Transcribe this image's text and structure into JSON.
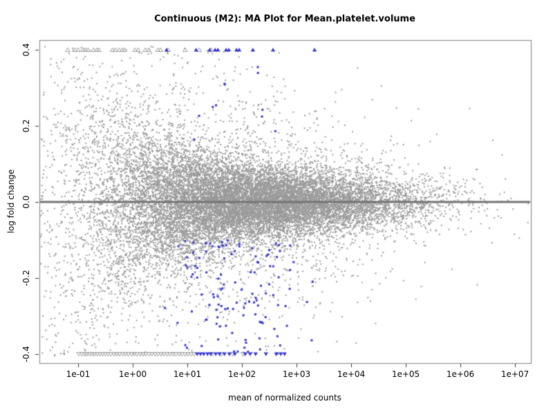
{
  "chart_data": {
    "type": "scatter",
    "title": "Continuous (M2): MA Plot for Mean.platelet.volume",
    "xlabel": "mean of normalized counts",
    "ylabel": "log fold change",
    "x_scale": "log10",
    "xlim_log10": [
      -1.71,
      7.29
    ],
    "ylim": [
      -0.425,
      0.425
    ],
    "grid": false,
    "legend": false,
    "x_ticks": [
      {
        "log10": -1,
        "label": "1e-01"
      },
      {
        "log10": 0,
        "label": "1e+00"
      },
      {
        "log10": 1,
        "label": "1e+01"
      },
      {
        "log10": 2,
        "label": "1e+02"
      },
      {
        "log10": 3,
        "label": "1e+03"
      },
      {
        "log10": 4,
        "label": "1e+04"
      },
      {
        "log10": 5,
        "label": "1e+05"
      },
      {
        "log10": 6,
        "label": "1e+06"
      },
      {
        "log10": 7,
        "label": "1e+07"
      }
    ],
    "y_ticks": [
      {
        "value": 0.4,
        "label": "0.4"
      },
      {
        "value": 0.2,
        "label": "0.2"
      },
      {
        "value": 0.0,
        "label": "0.0"
      },
      {
        "value": -0.2,
        "label": "-0.2"
      },
      {
        "value": -0.4,
        "label": "-0.4"
      }
    ],
    "colors": {
      "nonsig_point": "#9a9a9a",
      "sig_point": "#3434cf",
      "zero_line": "#737373",
      "box": "#8c8c8c",
      "tick": "#333333"
    },
    "zero_line": {
      "y": 0.0,
      "thickness": 3
    },
    "points": {
      "nonsig": {
        "description": "non-significant genes, tiny gray dots; funnel-shaped cloud narrowing toward high counts, dense solid band at log fold change 0",
        "count": 17000,
        "seed": 42,
        "log10x_mean": 1.9,
        "log10x_sd": 1.6,
        "log10x_range": [
          -1.69,
          7.28
        ],
        "sigma_anchor": -1.7,
        "sigma_base": 0.036,
        "sigma_amp": 0.33,
        "sigma_decay": 0.78,
        "tail_frac": 0.13,
        "tail_mult": 3.1,
        "y_clip": 0.41,
        "size": 2
      },
      "sig_lower": {
        "description": "significant genes (blue), mostly negative log fold change between 1e+01 and 1e+03 counts",
        "count": 120,
        "seed": 777,
        "log10x_mean": 1.95,
        "log10x_sd": 0.62,
        "log10x_range": [
          0.5,
          3.3
        ],
        "y_min_mag": 0.1,
        "y_span": 0.3,
        "y_pow": 1.25,
        "y_clip": 0.4,
        "size": 3
      },
      "sig_upper": {
        "description": "significant genes (blue) with positive log fold change",
        "count": 14,
        "seed": 991,
        "log10x_mean": 2.0,
        "log10x_sd": 0.5,
        "log10x_range": [
          1.0,
          2.8
        ],
        "y_base": 0.16,
        "y_span": 0.2,
        "size": 3
      }
    },
    "clipped": {
      "top": {
        "y": 0.4,
        "gray_log10x": [
          -1.19,
          -1.06,
          -1.0,
          -0.91,
          -0.87,
          -0.82,
          -0.72,
          -0.66,
          -0.62,
          -0.37,
          -0.32,
          -0.25,
          -0.19,
          -0.15,
          0.04,
          0.1,
          0.23,
          0.29,
          0.46,
          0.51,
          0.65,
          0.96,
          1.22,
          1.44
        ],
        "blue_log10x": [
          0.62,
          1.16,
          1.41,
          1.51,
          1.56,
          1.71,
          1.76,
          1.9,
          1.95,
          2.2,
          2.57,
          3.33
        ]
      },
      "bottom": {
        "y": -0.4,
        "gray_log10x": [
          -0.99,
          -0.93,
          -0.88,
          -0.84,
          -0.79,
          -0.74,
          -0.7,
          -0.65,
          -0.6,
          -0.55,
          -0.5,
          -0.45,
          -0.4,
          -0.34,
          -0.29,
          -0.24,
          -0.18,
          -0.13,
          -0.08,
          -0.02,
          0.03,
          0.08,
          0.14,
          0.19,
          0.24,
          0.3,
          0.35,
          0.41,
          0.46,
          0.52,
          0.57,
          0.63,
          0.68,
          0.74,
          0.79,
          0.85,
          0.9,
          0.96,
          1.01,
          1.07,
          1.12,
          1.45,
          1.62,
          1.83,
          2.02
        ],
        "blue_log10x": [
          1.18,
          1.24,
          1.3,
          1.37,
          1.43,
          1.52,
          1.59,
          1.68,
          1.77,
          1.87,
          2.06,
          2.15,
          2.25,
          2.44,
          2.63,
          2.71,
          2.78
        ]
      }
    }
  }
}
